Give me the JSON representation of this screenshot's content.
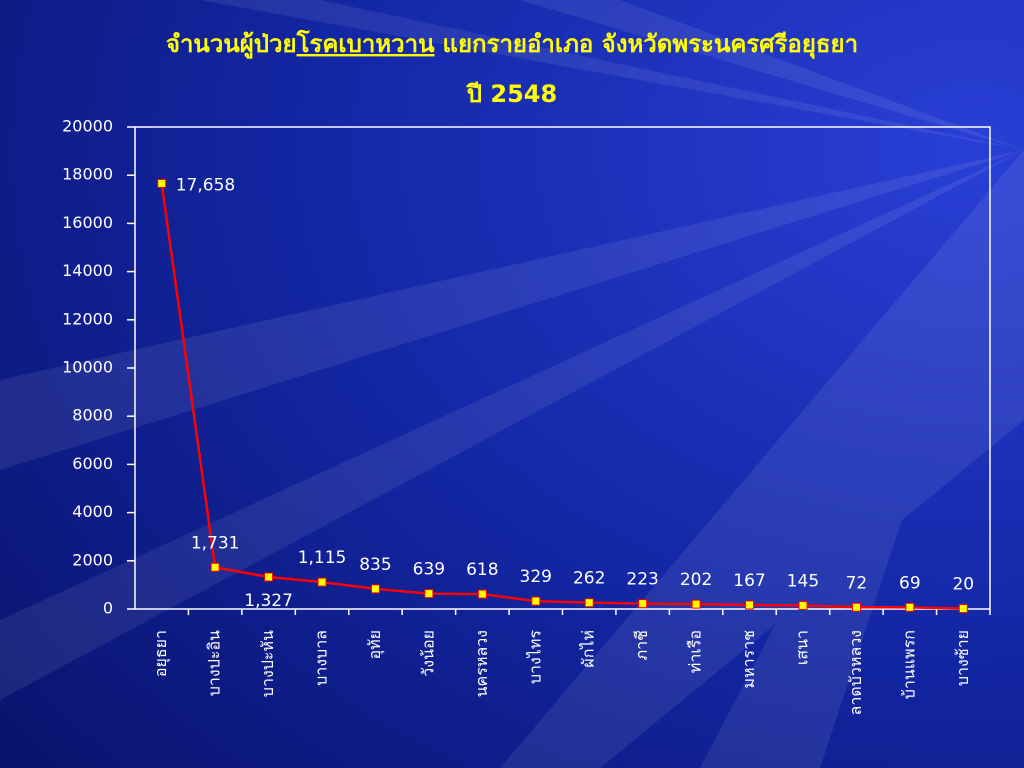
{
  "chart_data": {
    "type": "line",
    "title": [
      "จำนวนผู้ป่วย",
      "โรคเบาหวาน",
      "แยกรายอำเภอ จังหวัดพระนครศรีอยุธยา"
    ],
    "subtitle": "ปี 2548",
    "categories": [
      "อยุธยา",
      "บางปะอิน",
      "บางปะหัน",
      "บางบาล",
      "อุทัย",
      "วังน้อย",
      "นครหลวง",
      "บางไทร",
      "ผักไห่",
      "ภาชี",
      "ท่าเรือ",
      "มหาราช",
      "เสนา",
      "ลาดบัวหลวง",
      "บ้านแพรก",
      "บางซ้าย"
    ],
    "values": [
      17658,
      1731,
      1327,
      1115,
      835,
      639,
      618,
      329,
      262,
      223,
      202,
      167,
      145,
      72,
      69,
      20
    ],
    "value_labels": [
      "17,658",
      "1,731",
      "1,327",
      "1,115",
      "835",
      "639",
      "618",
      "329",
      "262",
      "223",
      "202",
      "167",
      "145",
      "72",
      "69",
      "20"
    ],
    "color": "#ff0000",
    "marker_color": "#ffff00",
    "ylim": [
      0,
      20000
    ],
    "yticks": [
      0,
      2000,
      4000,
      6000,
      8000,
      10000,
      12000,
      14000,
      16000,
      18000,
      20000
    ]
  }
}
